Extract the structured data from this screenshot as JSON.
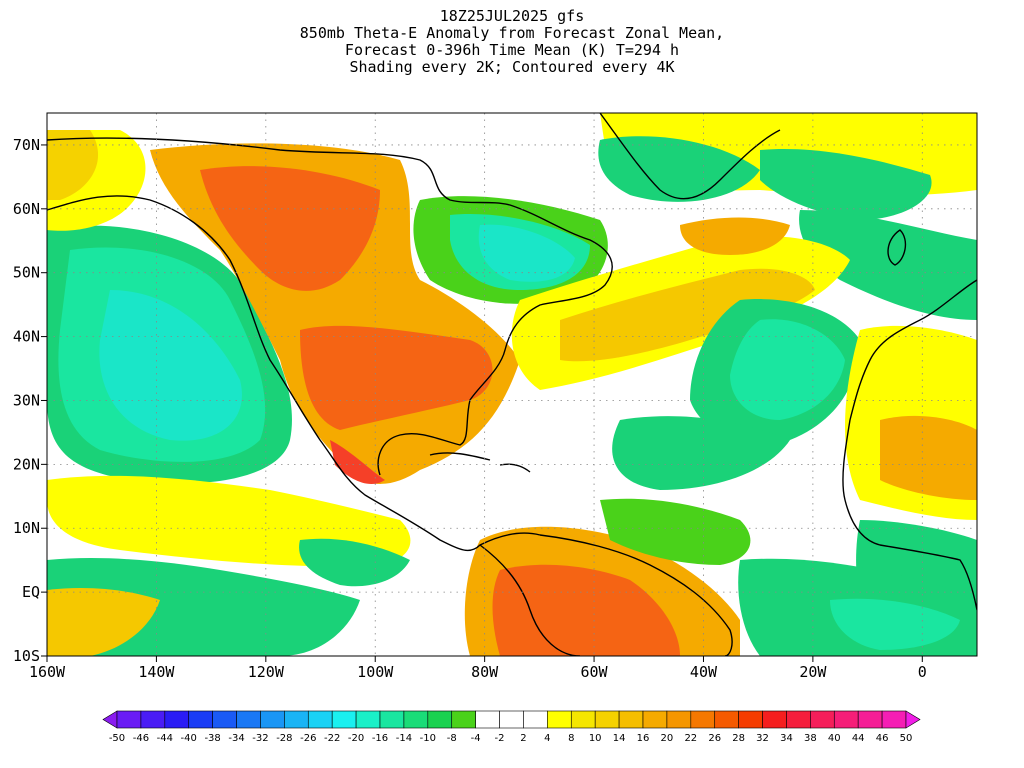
{
  "title": {
    "lines": [
      "18Z25JUL2025 gfs",
      "850mb Theta-E Anomaly from Forecast Zonal Mean,",
      "Forecast 0-396h Time Mean (K) T=294 h",
      "Shading every 2K; Contoured every 4K"
    ]
  },
  "map": {
    "lon_range": [
      -160,
      10
    ],
    "lat_range": [
      -10,
      75
    ],
    "lat_ticks": [
      {
        "value": 70,
        "label": "70N"
      },
      {
        "value": 60,
        "label": "60N"
      },
      {
        "value": 50,
        "label": "50N"
      },
      {
        "value": 40,
        "label": "40N"
      },
      {
        "value": 30,
        "label": "30N"
      },
      {
        "value": 20,
        "label": "20N"
      },
      {
        "value": 10,
        "label": "10N"
      },
      {
        "value": 0,
        "label": "EQ"
      },
      {
        "value": -10,
        "label": "10S"
      }
    ],
    "lon_ticks": [
      {
        "value": -160,
        "label": "160W"
      },
      {
        "value": -140,
        "label": "140W"
      },
      {
        "value": -120,
        "label": "120W"
      },
      {
        "value": -100,
        "label": "100W"
      },
      {
        "value": -80,
        "label": "80W"
      },
      {
        "value": -60,
        "label": "60W"
      },
      {
        "value": -40,
        "label": "40W"
      },
      {
        "value": -20,
        "label": "20W"
      },
      {
        "value": 0,
        "label": "0"
      }
    ],
    "grid": true
  },
  "colorbar": {
    "labels": [
      "-50",
      "-46",
      "-44",
      "-40",
      "-38",
      "-34",
      "-32",
      "-28",
      "-26",
      "-22",
      "-20",
      "-16",
      "-14",
      "-10",
      "-8",
      "-4",
      "-2",
      "2",
      "4",
      "8",
      "10",
      "14",
      "16",
      "20",
      "22",
      "26",
      "28",
      "32",
      "34",
      "38",
      "40",
      "44",
      "46",
      "50"
    ],
    "colors": [
      "#8a1cf0",
      "#6a1cf5",
      "#4a1cf5",
      "#2a1cf5",
      "#1a3cf5",
      "#1a5af5",
      "#1a78f5",
      "#1a96f5",
      "#1ab4f5",
      "#1ad2f5",
      "#1af0f0",
      "#1af0c8",
      "#1ae6a0",
      "#1adc78",
      "#1ad250",
      "#4ad21a",
      "#ffffff",
      "#ffffff",
      "#ffffff",
      "#ffff00",
      "#f5e600",
      "#f5d200",
      "#f5be00",
      "#f5aa00",
      "#f59600",
      "#f57800",
      "#f55a00",
      "#f53c00",
      "#f51e1e",
      "#f51e3c",
      "#f51e5a",
      "#f51e78",
      "#f51e96",
      "#f51eb4",
      "#f01ee6"
    ]
  },
  "field_colors": {
    "cold_strong": "#1ae6c8",
    "cold": "#1ad278",
    "cold_weak": "#4ad21a",
    "neutral": "#ffffff",
    "warm_weak": "#ffff00",
    "warm": "#f5c800",
    "warm_strong": "#f59600",
    "hot": "#f56414"
  }
}
